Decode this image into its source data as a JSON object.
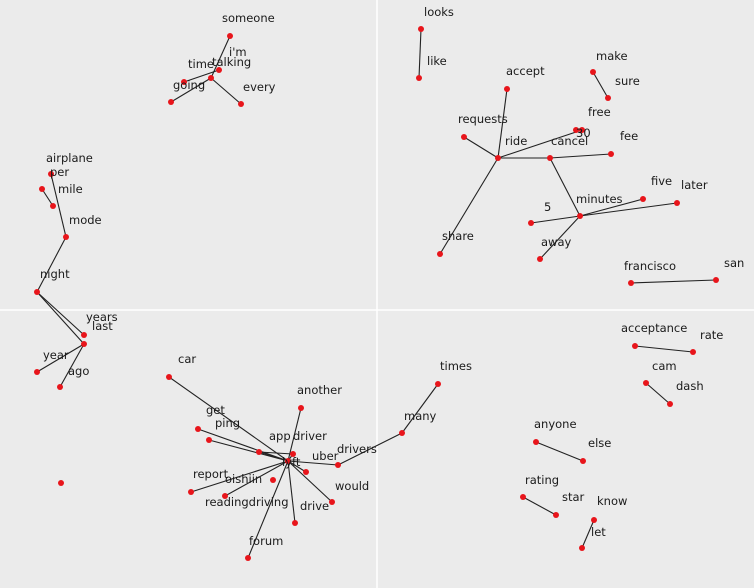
{
  "chart_data": {
    "type": "word-graph",
    "colors": {
      "background": "#ebebeb",
      "gridline": "#ffffff",
      "node": "#e8151b",
      "edge": "#222222",
      "text": "#1a1a1a"
    },
    "grid": true,
    "words": [
      "someone",
      "i'm",
      "talking",
      "time",
      "going",
      "every",
      "looks",
      "like",
      "accept",
      "requests",
      "ride",
      "share",
      "free",
      "30",
      "cancel",
      "fee",
      "make",
      "sure",
      "five",
      "later",
      "5",
      "minutes",
      "away",
      "francisco",
      "san",
      "airplane",
      "per",
      "mile",
      "mode",
      "night",
      "years",
      "last",
      "year",
      "ago",
      "acceptance",
      "rate",
      "cam",
      "dash",
      "car",
      "get",
      "ping",
      "app",
      "driver",
      "another",
      "lyft",
      "uber",
      "drivers",
      "times",
      "many",
      "report",
      "oishiin",
      "readingdriving",
      "would",
      "drive",
      "forum",
      "anyone",
      "else",
      "rating",
      "star",
      "know",
      "let"
    ],
    "edges": [
      [
        "someone",
        "talking"
      ],
      [
        "talking",
        "going"
      ],
      [
        "talking",
        "every"
      ],
      [
        "i'm",
        "time"
      ],
      [
        "looks",
        "like"
      ],
      [
        "make",
        "sure"
      ],
      [
        "accept",
        "ride"
      ],
      [
        "requests",
        "ride"
      ],
      [
        "ride",
        "share"
      ],
      [
        "ride",
        "free"
      ],
      [
        "ride",
        "cancel"
      ],
      [
        "cancel",
        "fee"
      ],
      [
        "cancel",
        "minutes"
      ],
      [
        "minutes",
        "5"
      ],
      [
        "minutes",
        "five"
      ],
      [
        "minutes",
        "later"
      ],
      [
        "minutes",
        "away"
      ],
      [
        "francisco",
        "san"
      ],
      [
        "per",
        "mile"
      ],
      [
        "airplane",
        "mode"
      ],
      [
        "mode",
        "night"
      ],
      [
        "night",
        "years"
      ],
      [
        "night",
        "last"
      ],
      [
        "last",
        "year"
      ],
      [
        "last",
        "ago"
      ],
      [
        "acceptance",
        "rate"
      ],
      [
        "cam",
        "dash"
      ],
      [
        "car",
        "lyft"
      ],
      [
        "get",
        "lyft"
      ],
      [
        "ping",
        "lyft"
      ],
      [
        "app",
        "driver"
      ],
      [
        "app",
        "lyft"
      ],
      [
        "driver",
        "lyft"
      ],
      [
        "another",
        "lyft"
      ],
      [
        "uber",
        "lyft"
      ],
      [
        "drivers",
        "lyft"
      ],
      [
        "drivers",
        "many"
      ],
      [
        "many",
        "times"
      ],
      [
        "report",
        "lyft"
      ],
      [
        "readingdriving",
        "lyft"
      ],
      [
        "would",
        "lyft"
      ],
      [
        "drive",
        "lyft"
      ],
      [
        "forum",
        "lyft"
      ],
      [
        "anyone",
        "else"
      ],
      [
        "rating",
        "star"
      ],
      [
        "know",
        "let"
      ]
    ]
  }
}
